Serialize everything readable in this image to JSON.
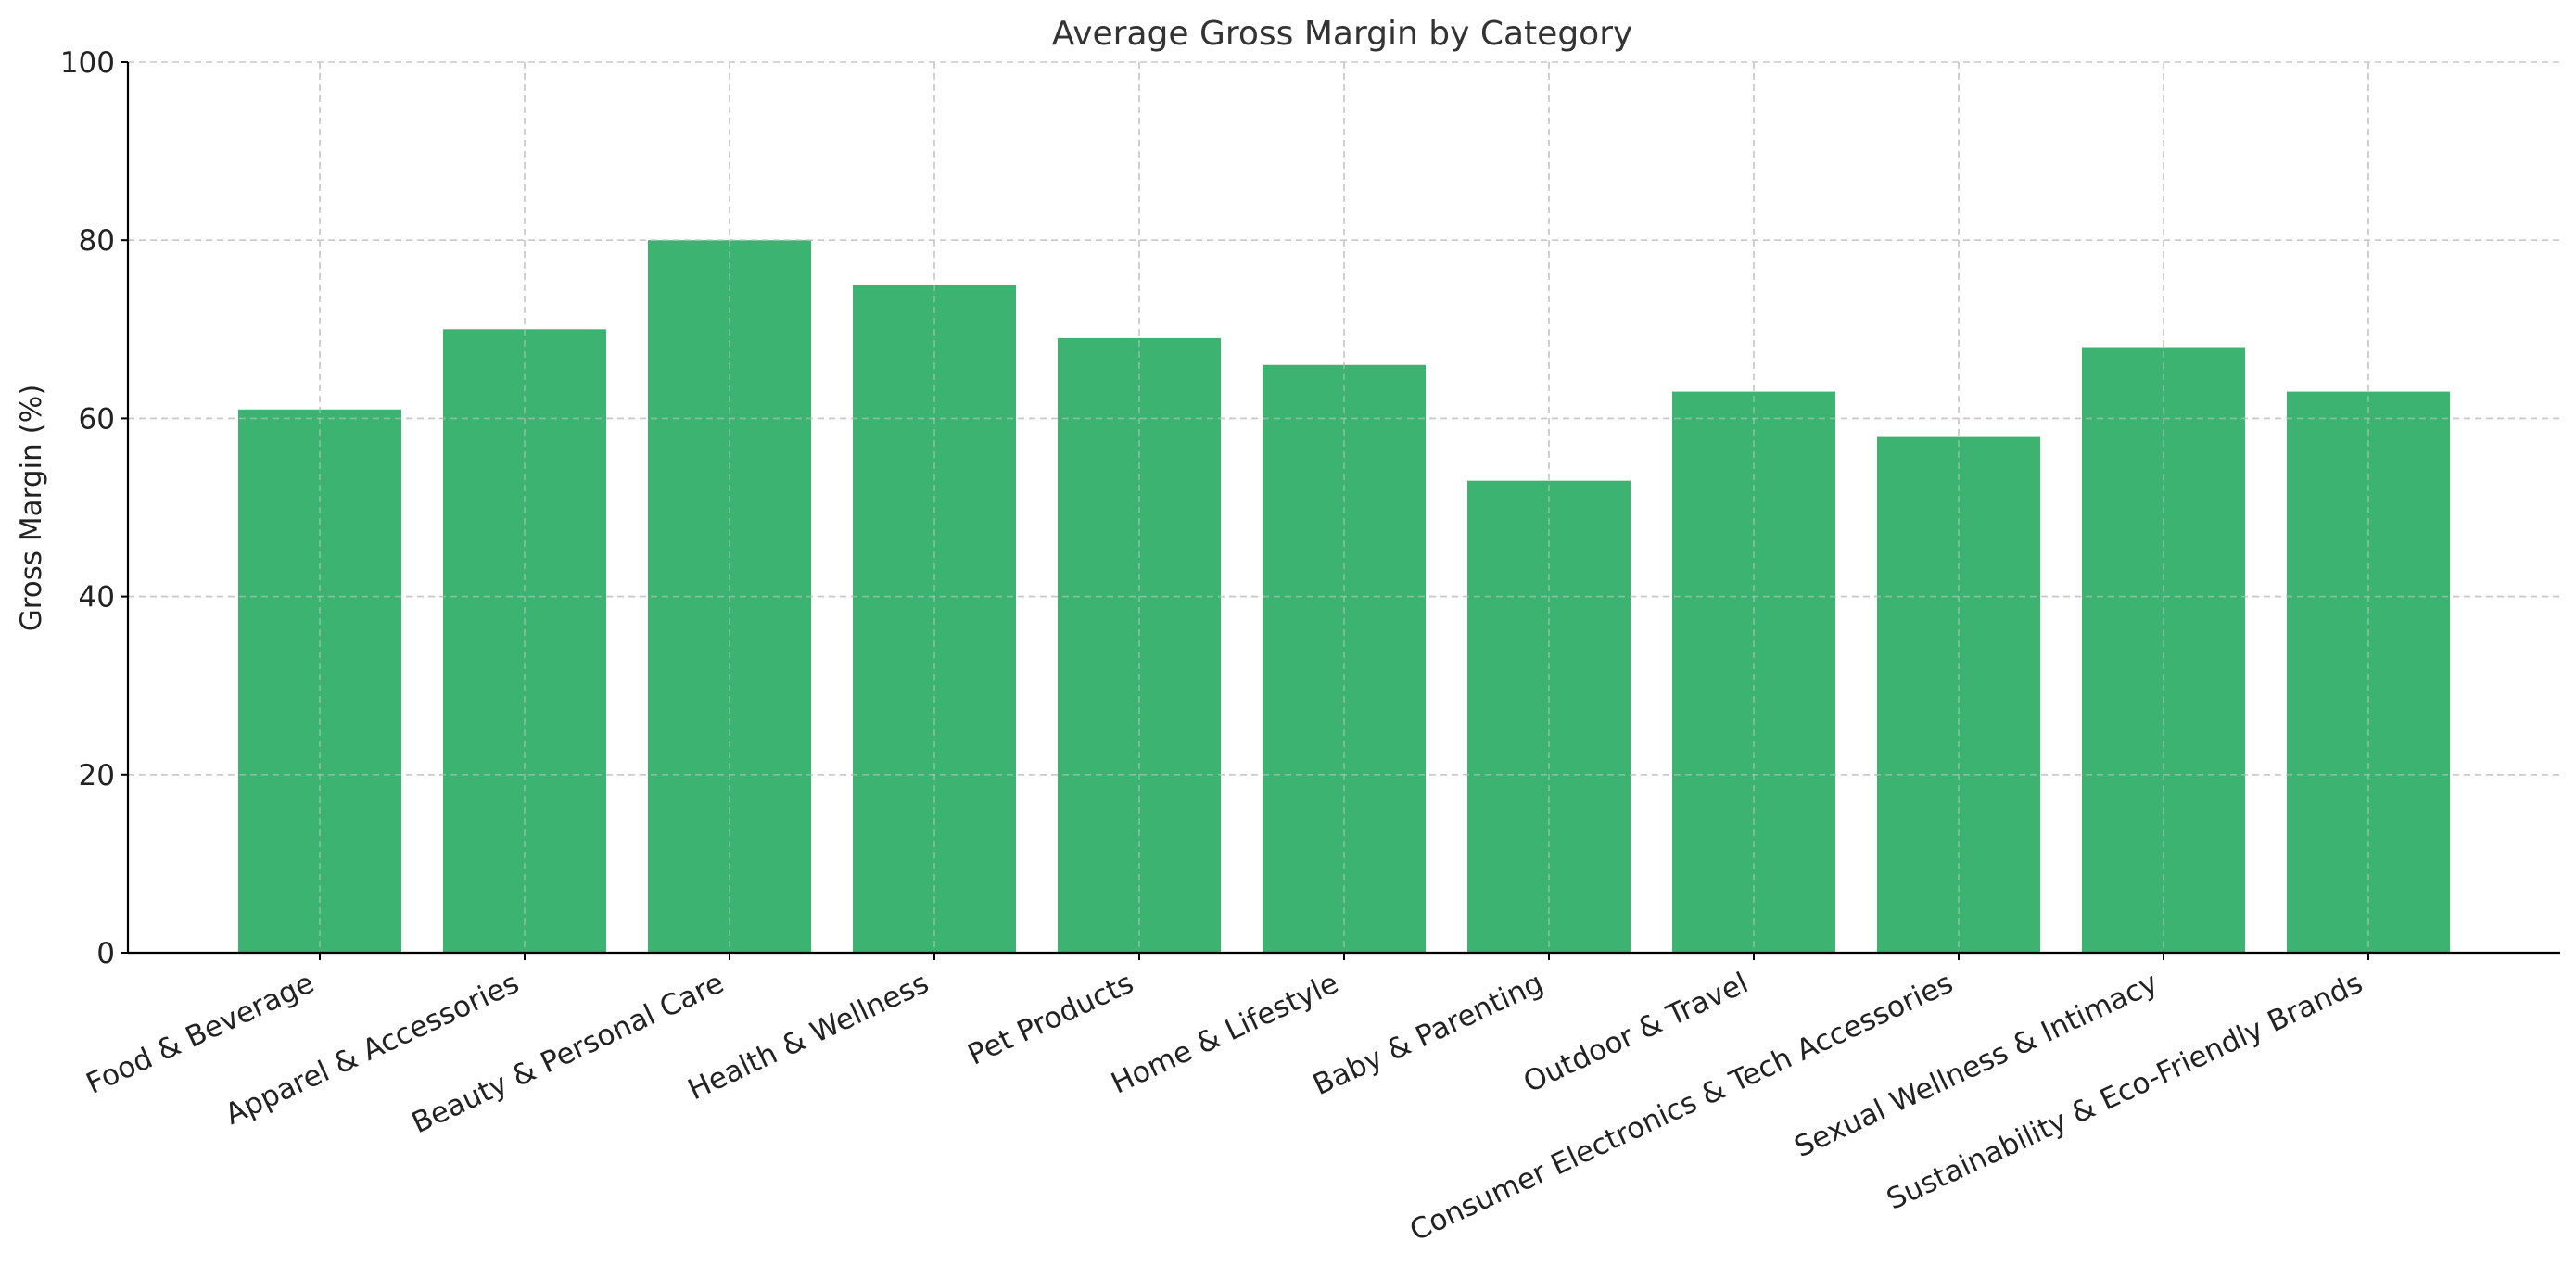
{
  "chart_data": {
    "type": "bar",
    "title": "Average Gross Margin by Category",
    "xlabel": "",
    "ylabel": "Gross Margin (%)",
    "ylim": [
      0,
      100
    ],
    "yticks": [
      0,
      20,
      40,
      60,
      80,
      100
    ],
    "grid": true,
    "bar_color": "#3cb371",
    "categories": [
      "Food & Beverage",
      "Apparel & Accessories",
      "Beauty & Personal Care",
      "Health & Wellness",
      "Pet Products",
      "Home & Lifestyle",
      "Baby & Parenting",
      "Outdoor & Travel",
      "Consumer Electronics & Tech Accessories",
      "Sexual Wellness & Intimacy",
      "Sustainability & Eco-Friendly Brands"
    ],
    "values": [
      61,
      70,
      80,
      75,
      69,
      66,
      53,
      63,
      58,
      68,
      63
    ]
  }
}
